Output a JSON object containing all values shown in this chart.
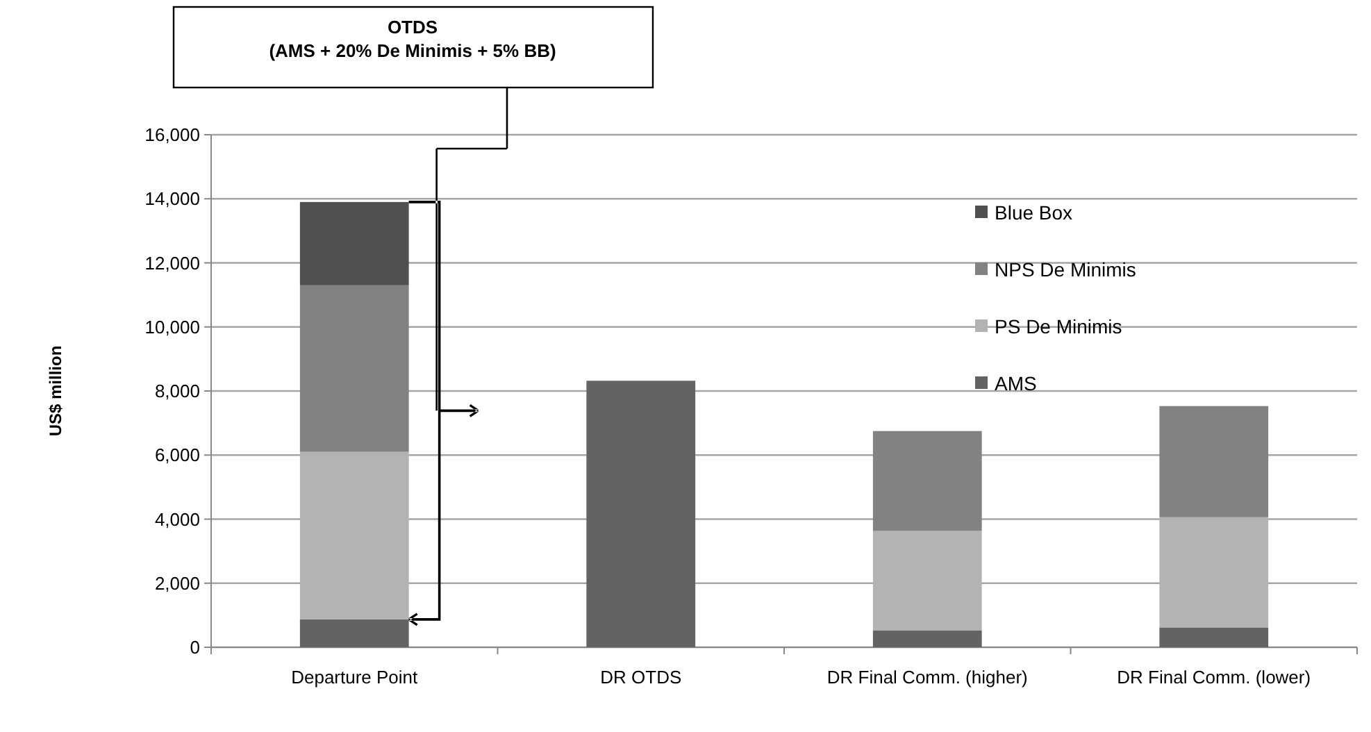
{
  "chart_data": {
    "type": "bar",
    "stacked": true,
    "ylabel": "US$ million",
    "categories": [
      "Departure Point",
      "DR OTDS",
      "DR Final Comm. (higher)",
      "DR Final Comm. (lower)"
    ],
    "series": [
      {
        "name": "AMS",
        "color": "#636363",
        "values": [
          870,
          8320,
          520,
          620
        ]
      },
      {
        "name": "PS De Minimis",
        "color": "#b3b3b3",
        "values": [
          5230,
          null,
          3110,
          3440
        ]
      },
      {
        "name": "NPS De Minimis",
        "color": "#828282",
        "values": [
          5200,
          null,
          3120,
          3470
        ]
      },
      {
        "name": "Blue Box",
        "color": "#505050",
        "values": [
          2600,
          null,
          null,
          null
        ]
      }
    ],
    "ylim": [
      0,
      16000
    ],
    "yticks": [
      {
        "value": 0,
        "label": "0"
      },
      {
        "value": 2000,
        "label": "2,000"
      },
      {
        "value": 4000,
        "label": "4,000"
      },
      {
        "value": 6000,
        "label": "6,000"
      },
      {
        "value": 8000,
        "label": "8,000"
      },
      {
        "value": 10000,
        "label": "10,000"
      },
      {
        "value": 12000,
        "label": "12,000"
      },
      {
        "value": 14000,
        "label": "14,000"
      },
      {
        "value": 16000,
        "label": "16,000"
      }
    ],
    "grid": "y",
    "legend": "top right",
    "annotations": [
      "OTDS",
      "(AMS + 20% De Minimis + 5% BB)"
    ]
  }
}
